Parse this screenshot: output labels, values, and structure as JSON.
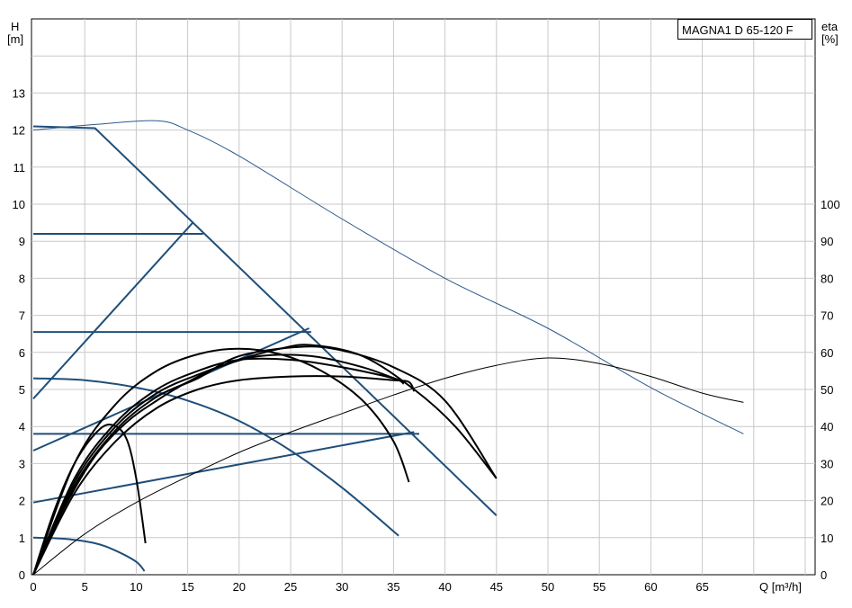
{
  "chart_data": {
    "type": "line",
    "title": "MAGNA1 D 65-120 F",
    "xlabel": "Q [m³/h]",
    "ylabel_left": {
      "line1": "H",
      "line2": "[m]"
    },
    "ylabel_right": {
      "line1": "eta",
      "line2": "[%]"
    },
    "x_ticks": [
      "0",
      "5",
      "10",
      "15",
      "20",
      "25",
      "30",
      "35",
      "40",
      "45",
      "50",
      "55",
      "60",
      "65"
    ],
    "y_ticks_left": [
      "0",
      "1",
      "2",
      "3",
      "4",
      "5",
      "6",
      "7",
      "8",
      "9",
      "10",
      "11",
      "12",
      "13"
    ],
    "y_ticks_right": [
      "0",
      "10",
      "20",
      "30",
      "40",
      "50",
      "60",
      "70",
      "80",
      "90",
      "100"
    ],
    "xlim": [
      0,
      70
    ],
    "ylim_left": [
      0,
      14.5
    ],
    "ylim_right": [
      0,
      145
    ],
    "grid": true,
    "legend": "none",
    "colors": {
      "control": "#1f4e79",
      "thin": "#2c5a8c",
      "eta": "#000000",
      "grid": "#c8c8c8"
    },
    "series": [
      {
        "group": "control",
        "width": 2,
        "points": [
          [
            0,
            12.1
          ],
          [
            6,
            12.05
          ],
          [
            45,
            1.6
          ]
        ]
      },
      {
        "group": "control",
        "width": 2,
        "points": [
          [
            0,
            9.2
          ],
          [
            16.5,
            9.2
          ]
        ]
      },
      {
        "group": "control",
        "width": 2,
        "points": [
          [
            0,
            6.55
          ],
          [
            27,
            6.55
          ]
        ]
      },
      {
        "group": "control",
        "width": 2,
        "points": [
          [
            0,
            3.8
          ],
          [
            37.5,
            3.8
          ]
        ]
      },
      {
        "group": "control",
        "width": 2,
        "points": [
          [
            0,
            4.75
          ],
          [
            15.5,
            9.5
          ]
        ]
      },
      {
        "group": "control",
        "width": 2,
        "points": [
          [
            0,
            3.35
          ],
          [
            26.8,
            6.65
          ]
        ]
      },
      {
        "group": "control",
        "width": 2,
        "points": [
          [
            0,
            1.95
          ],
          [
            37,
            3.85
          ]
        ]
      },
      {
        "group": "control",
        "width": 2,
        "points": [
          [
            0,
            5.3
          ],
          [
            5,
            5.25
          ],
          [
            10,
            5.05
          ],
          [
            15,
            4.7
          ],
          [
            20,
            4.15
          ],
          [
            25,
            3.35
          ],
          [
            30,
            2.35
          ],
          [
            35.5,
            1.05
          ]
        ]
      },
      {
        "group": "control",
        "width": 2,
        "points": [
          [
            0,
            1.0
          ],
          [
            3,
            0.97
          ],
          [
            6,
            0.85
          ],
          [
            8,
            0.65
          ],
          [
            10,
            0.35
          ],
          [
            10.8,
            0.1
          ]
        ]
      },
      {
        "group": "thin",
        "width": 1,
        "points": [
          [
            0,
            12.0
          ],
          [
            6,
            12.15
          ],
          [
            12,
            12.25
          ],
          [
            15,
            12.0
          ],
          [
            20,
            11.3
          ],
          [
            30,
            9.6
          ],
          [
            40,
            8.0
          ],
          [
            50,
            6.65
          ],
          [
            60,
            5.05
          ],
          [
            69,
            3.8
          ]
        ]
      },
      {
        "group": "eta",
        "width": 1,
        "axis": "right",
        "points": [
          [
            0,
            0
          ],
          [
            5,
            11
          ],
          [
            10,
            19.5
          ],
          [
            15,
            26.5
          ],
          [
            20,
            33
          ],
          [
            25,
            38.5
          ],
          [
            30,
            43.5
          ],
          [
            35,
            48.5
          ],
          [
            40,
            53
          ],
          [
            45,
            56.5
          ],
          [
            50,
            58.5
          ],
          [
            55,
            57
          ],
          [
            60,
            53.5
          ],
          [
            65,
            49
          ],
          [
            69,
            46.5
          ]
        ]
      },
      {
        "group": "eta",
        "width": 2,
        "points": [
          [
            0,
            0
          ],
          [
            2,
            1.7
          ],
          [
            4,
            3.0
          ],
          [
            6,
            3.8
          ],
          [
            7.5,
            4.05
          ],
          [
            9,
            3.7
          ],
          [
            10,
            2.6
          ],
          [
            10.9,
            0.85
          ]
        ]
      },
      {
        "group": "eta",
        "width": 2,
        "points": [
          [
            0,
            0
          ],
          [
            4,
            3.0
          ],
          [
            8,
            4.6
          ],
          [
            12,
            5.5
          ],
          [
            16,
            5.95
          ],
          [
            20,
            6.1
          ],
          [
            24,
            5.95
          ],
          [
            28,
            5.5
          ],
          [
            32,
            4.7
          ],
          [
            35,
            3.6
          ],
          [
            36.5,
            2.5
          ]
        ]
      },
      {
        "group": "eta",
        "width": 2,
        "points": [
          [
            0,
            0
          ],
          [
            4,
            2.6
          ],
          [
            8,
            4.1
          ],
          [
            12,
            5.0
          ],
          [
            16,
            5.5
          ],
          [
            20,
            5.8
          ],
          [
            25,
            5.8
          ],
          [
            30,
            5.6
          ],
          [
            35,
            5.3
          ],
          [
            36,
            5.15
          ]
        ]
      },
      {
        "group": "eta",
        "width": 2,
        "points": [
          [
            0,
            0
          ],
          [
            4,
            2.4
          ],
          [
            8,
            3.9
          ],
          [
            12,
            4.8
          ],
          [
            16,
            5.3
          ],
          [
            20,
            5.9
          ],
          [
            26,
            6.15
          ],
          [
            30,
            6.05
          ],
          [
            35,
            5.6
          ],
          [
            40,
            4.7
          ],
          [
            45,
            2.6
          ]
        ]
      },
      {
        "group": "eta",
        "width": 2,
        "points": [
          [
            0,
            0
          ],
          [
            4,
            2.5
          ],
          [
            8,
            4.0
          ],
          [
            12,
            4.9
          ],
          [
            16,
            5.4
          ],
          [
            20,
            5.8
          ],
          [
            24,
            6.1
          ],
          [
            27,
            6.2
          ],
          [
            32,
            5.9
          ],
          [
            37,
            5.0
          ],
          [
            41,
            4.0
          ],
          [
            45,
            2.6
          ]
        ]
      },
      {
        "group": "eta",
        "width": 2,
        "points": [
          [
            0,
            0
          ],
          [
            4,
            2.2
          ],
          [
            8,
            3.6
          ],
          [
            12,
            4.5
          ],
          [
            16,
            5.0
          ],
          [
            20,
            5.25
          ],
          [
            25,
            5.35
          ],
          [
            30,
            5.35
          ],
          [
            35,
            5.25
          ],
          [
            36.5,
            5.2
          ],
          [
            37,
            4.95
          ]
        ]
      },
      {
        "group": "eta",
        "width": 2,
        "points": [
          [
            0,
            0
          ],
          [
            3,
            1.8
          ],
          [
            6,
            3.2
          ],
          [
            9,
            4.1
          ],
          [
            12,
            4.7
          ],
          [
            15,
            5.2
          ],
          [
            18,
            5.6
          ],
          [
            22,
            5.9
          ],
          [
            27,
            5.9
          ],
          [
            32,
            5.6
          ],
          [
            36,
            5.2
          ]
        ]
      }
    ]
  }
}
